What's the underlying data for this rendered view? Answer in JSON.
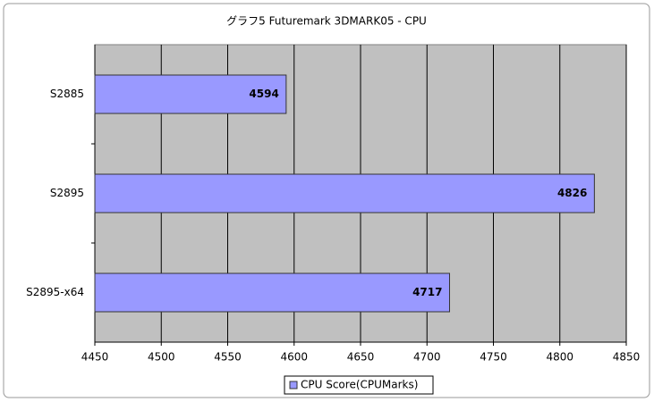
{
  "chart_data": {
    "type": "bar",
    "title": "グラフ5 Futuremark 3DMARK05 - CPU",
    "categories": [
      "S2885",
      "S2895",
      "S2895-x64"
    ],
    "series": [
      {
        "name": "CPU Score(CPUMarks)",
        "color": "#9999ff",
        "values": [
          4594,
          4826,
          4717
        ]
      }
    ],
    "xlim": [
      4450,
      4850
    ],
    "xticks": [
      4450,
      4500,
      4550,
      4600,
      4650,
      4700,
      4750,
      4800,
      4850
    ],
    "grid": true,
    "legend": "bottom"
  }
}
